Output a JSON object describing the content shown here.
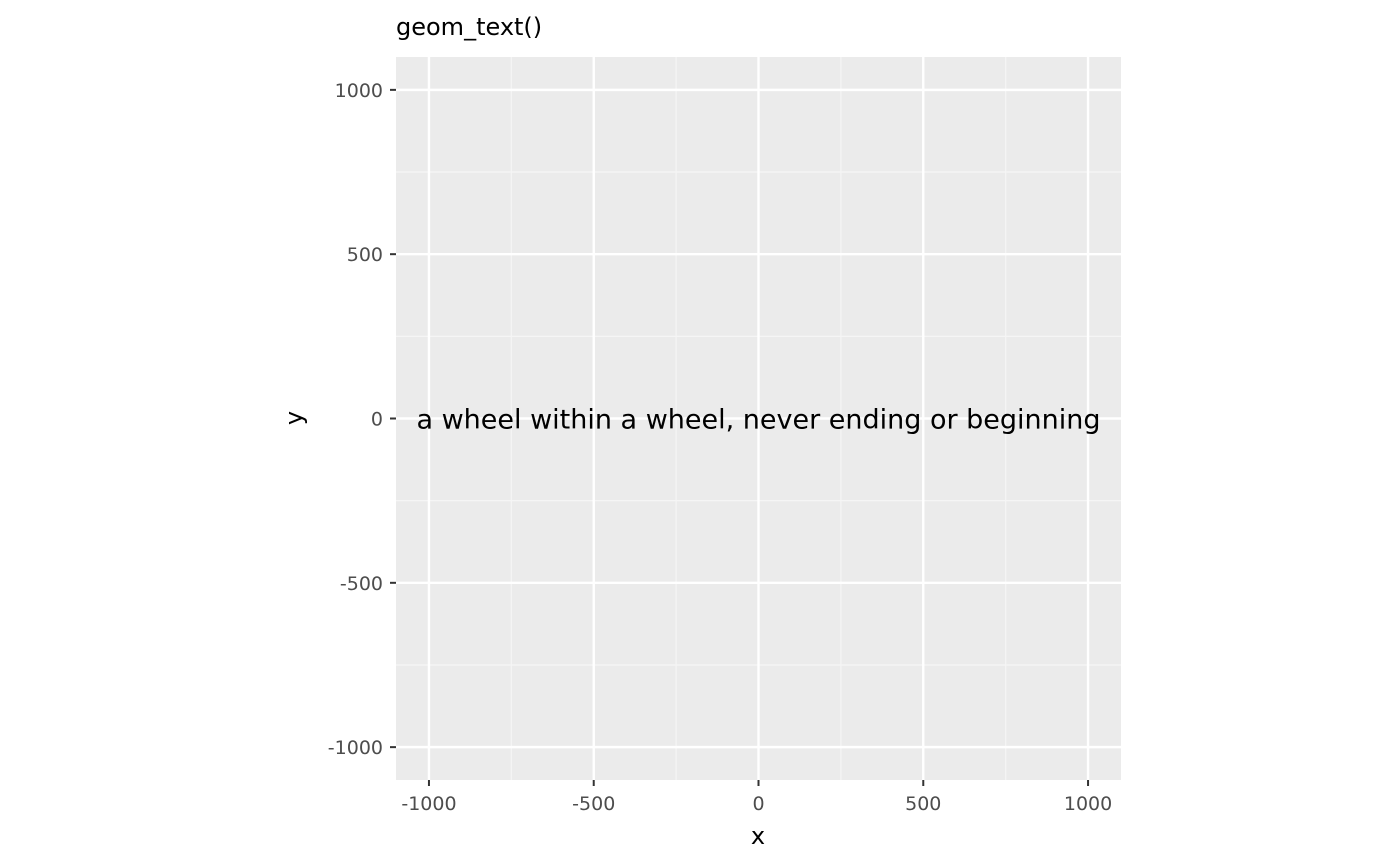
{
  "chart_data": {
    "type": "scatter",
    "title": "geom_text()",
    "xlabel": "x",
    "ylabel": "y",
    "xlim": [
      -1100,
      1100
    ],
    "ylim": [
      -1100,
      1100
    ],
    "x_ticks": [
      -1000,
      -500,
      0,
      500,
      1000
    ],
    "y_ticks": [
      -1000,
      -500,
      0,
      500,
      1000
    ],
    "x_tick_labels": [
      "-1000",
      "-500",
      "0",
      "500",
      "1000"
    ],
    "y_tick_labels": [
      "-1000",
      "-500",
      "0",
      "500",
      "1000"
    ],
    "grid": true,
    "legend": "none",
    "points": [
      {
        "x": 0,
        "y": 0,
        "label": "a wheel within a wheel, never ending or beginning"
      }
    ],
    "colors": {
      "panel_background": "#ebebeb",
      "grid_major": "#ffffff",
      "grid_minor": "#f5f5f5",
      "tick_label": "#4d4d4d",
      "text": "#000000"
    }
  }
}
